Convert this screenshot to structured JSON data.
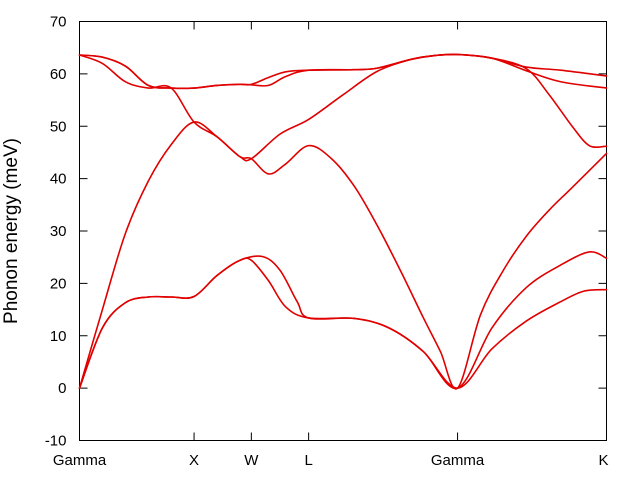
{
  "chart_data": {
    "type": "line",
    "title": "",
    "xlabel": "",
    "ylabel": "Phonon energy (meV)",
    "grid": false,
    "legend": "none",
    "line_color": "#e00000",
    "ylim": [
      -10,
      70
    ],
    "yticks": [
      -10,
      0,
      10,
      20,
      30,
      40,
      50,
      60,
      70
    ],
    "xlim": [
      0,
      4.6
    ],
    "xticks": [
      {
        "label": "Gamma",
        "x": 0
      },
      {
        "label": "X",
        "x": 1.0
      },
      {
        "label": "W",
        "x": 1.5
      },
      {
        "label": "L",
        "x": 2.0
      },
      {
        "label": "Gamma",
        "x": 3.3
      },
      {
        "label": "K",
        "x": 4.6
      }
    ],
    "series": [
      {
        "values": [
          [
            0,
            0
          ],
          [
            0.2,
            11.5
          ],
          [
            0.4,
            16.3
          ],
          [
            0.6,
            17.4
          ],
          [
            0.8,
            17.4
          ],
          [
            1.0,
            17.5
          ],
          [
            1.2,
            21.5
          ],
          [
            1.4,
            24.4
          ],
          [
            1.5,
            24.4
          ],
          [
            1.65,
            20.5
          ],
          [
            1.8,
            15.5
          ],
          [
            2.0,
            13.4
          ],
          [
            2.4,
            13.3
          ],
          [
            2.7,
            11.5
          ],
          [
            3.0,
            7.0
          ],
          [
            3.3,
            0
          ],
          [
            3.6,
            7.5
          ],
          [
            3.9,
            12.8
          ],
          [
            4.2,
            16.5
          ],
          [
            4.4,
            18.5
          ],
          [
            4.6,
            18.8
          ]
        ]
      },
      {
        "values": [
          [
            0,
            0
          ],
          [
            0.2,
            11.5
          ],
          [
            0.4,
            16.3
          ],
          [
            0.6,
            17.4
          ],
          [
            0.8,
            17.4
          ],
          [
            1.0,
            17.5
          ],
          [
            1.2,
            21.5
          ],
          [
            1.4,
            24.4
          ],
          [
            1.6,
            25.1
          ],
          [
            1.75,
            22.5
          ],
          [
            1.9,
            16.5
          ],
          [
            2.0,
            13.4
          ],
          [
            2.4,
            13.3
          ],
          [
            2.7,
            11.5
          ],
          [
            3.0,
            7.0
          ],
          [
            3.3,
            0
          ],
          [
            3.6,
            11.5
          ],
          [
            3.9,
            19.2
          ],
          [
            4.2,
            23.5
          ],
          [
            4.45,
            26.0
          ],
          [
            4.6,
            24.8
          ]
        ]
      },
      {
        "values": [
          [
            0,
            0
          ],
          [
            0.2,
            15.0
          ],
          [
            0.4,
            29.5
          ],
          [
            0.6,
            39.5
          ],
          [
            0.8,
            46.5
          ],
          [
            1.0,
            50.8
          ],
          [
            1.2,
            48.0
          ],
          [
            1.4,
            44.2
          ],
          [
            1.5,
            43.8
          ],
          [
            1.65,
            40.9
          ],
          [
            1.8,
            42.8
          ],
          [
            2.0,
            46.3
          ],
          [
            2.2,
            43.8
          ],
          [
            2.4,
            38.5
          ],
          [
            2.6,
            31.0
          ],
          [
            2.8,
            22.5
          ],
          [
            3.0,
            13.5
          ],
          [
            3.15,
            7.0
          ],
          [
            3.3,
            0
          ],
          [
            3.5,
            14.0
          ],
          [
            3.7,
            22.5
          ],
          [
            3.9,
            29.0
          ],
          [
            4.1,
            34.0
          ],
          [
            4.3,
            38.3
          ],
          [
            4.6,
            44.8
          ]
        ]
      },
      {
        "values": [
          [
            0,
            63.6
          ],
          [
            0.2,
            62.0
          ],
          [
            0.4,
            58.5
          ],
          [
            0.6,
            57.3
          ],
          [
            0.8,
            57.3
          ],
          [
            1.0,
            50.8
          ],
          [
            1.2,
            48.0
          ],
          [
            1.4,
            44.2
          ],
          [
            1.5,
            43.8
          ],
          [
            1.75,
            48.5
          ],
          [
            2.0,
            51.3
          ],
          [
            2.3,
            56.0
          ],
          [
            2.6,
            60.5
          ],
          [
            2.9,
            62.8
          ],
          [
            3.1,
            63.5
          ],
          [
            3.3,
            63.7
          ],
          [
            3.6,
            63.0
          ],
          [
            3.9,
            61.0
          ],
          [
            4.1,
            56.0
          ],
          [
            4.3,
            50.0
          ],
          [
            4.45,
            46.3
          ],
          [
            4.6,
            46.2
          ]
        ]
      },
      {
        "values": [
          [
            0,
            63.6
          ],
          [
            0.2,
            63.2
          ],
          [
            0.4,
            61.5
          ],
          [
            0.6,
            57.8
          ],
          [
            0.8,
            57.3
          ],
          [
            1.0,
            57.3
          ],
          [
            1.2,
            57.8
          ],
          [
            1.4,
            58.0
          ],
          [
            1.5,
            57.9
          ],
          [
            1.65,
            57.8
          ],
          [
            1.8,
            59.5
          ],
          [
            2.0,
            60.7
          ],
          [
            2.4,
            60.8
          ],
          [
            2.6,
            61.1
          ],
          [
            2.9,
            62.8
          ],
          [
            3.1,
            63.5
          ],
          [
            3.3,
            63.7
          ],
          [
            3.6,
            63.0
          ],
          [
            3.9,
            60.6
          ],
          [
            4.2,
            58.5
          ],
          [
            4.6,
            57.3
          ]
        ]
      },
      {
        "values": [
          [
            0,
            63.6
          ],
          [
            0.2,
            63.2
          ],
          [
            0.4,
            61.5
          ],
          [
            0.6,
            57.8
          ],
          [
            0.8,
            57.3
          ],
          [
            1.0,
            57.3
          ],
          [
            1.2,
            57.8
          ],
          [
            1.4,
            58.0
          ],
          [
            1.5,
            58.0
          ],
          [
            1.65,
            59.3
          ],
          [
            1.8,
            60.4
          ],
          [
            2.0,
            60.7
          ],
          [
            2.4,
            60.8
          ],
          [
            2.6,
            61.1
          ],
          [
            2.9,
            62.8
          ],
          [
            3.1,
            63.5
          ],
          [
            3.3,
            63.7
          ],
          [
            3.6,
            63.0
          ],
          [
            3.9,
            61.3
          ],
          [
            4.2,
            60.7
          ],
          [
            4.6,
            59.6
          ]
        ]
      }
    ]
  }
}
